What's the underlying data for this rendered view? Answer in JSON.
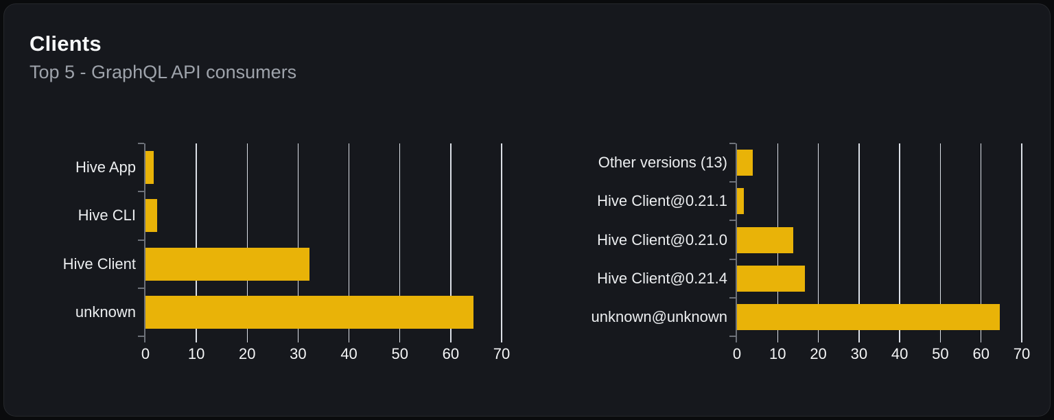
{
  "page": {
    "title": "Clients",
    "subtitle": "Top 5 - GraphQL API consumers"
  },
  "colors": {
    "bar": "#e9b308",
    "grid_line": "#dde1e8",
    "axis_line": "#6e727a",
    "card_background": "#16181d",
    "page_background": "#0a0b0d",
    "title_text": "#f7f8f9",
    "subtitle_text": "#9ea3ab",
    "category_label_text": "#eceef0",
    "tick_label_text": "#f4f5f6"
  },
  "chart_data": [
    {
      "type": "bar",
      "orientation": "horizontal",
      "title": "",
      "categories": [
        "Hive App",
        "Hive CLI",
        "Hive Client",
        "unknown"
      ],
      "values": [
        1.6,
        2.3,
        32.3,
        64.5
      ],
      "xlabel": "",
      "ylabel": "",
      "xlim": [
        0,
        70
      ],
      "xticks": [
        0,
        10,
        20,
        30,
        40,
        50,
        60,
        70
      ],
      "grid": "vertical",
      "legend": false
    },
    {
      "type": "bar",
      "orientation": "horizontal",
      "title": "",
      "categories": [
        "Other versions (13)",
        "Hive Client@0.21.1",
        "Hive Client@0.21.0",
        "Hive Client@0.21.4",
        "unknown@unknown"
      ],
      "values": [
        3.9,
        1.7,
        13.8,
        16.7,
        64.6
      ],
      "xlabel": "",
      "ylabel": "",
      "xlim": [
        0,
        70
      ],
      "xticks": [
        0,
        10,
        20,
        30,
        40,
        50,
        60,
        70
      ],
      "grid": "vertical",
      "legend": false
    }
  ]
}
